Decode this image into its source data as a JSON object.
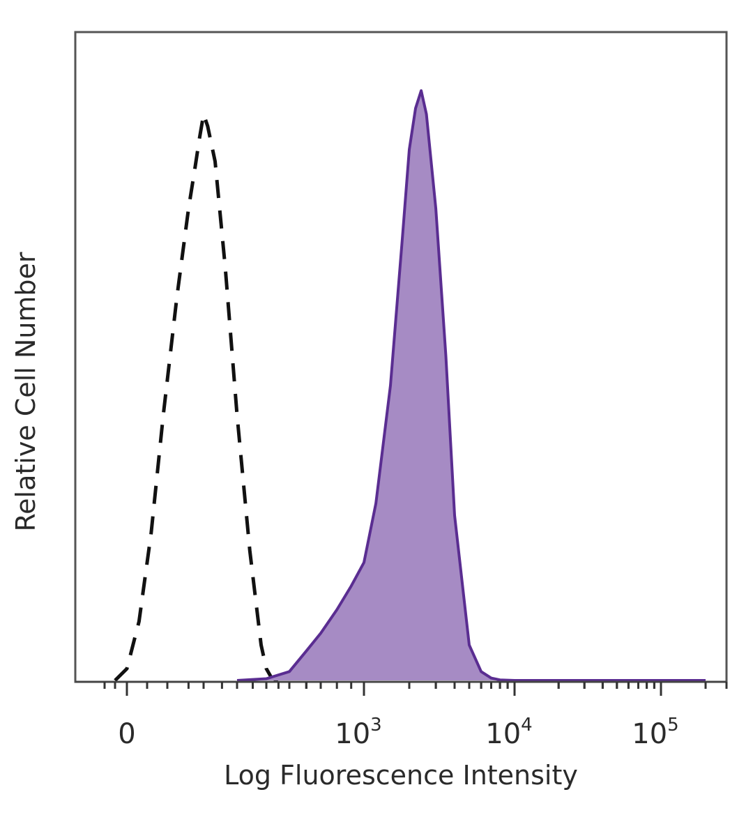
{
  "chart_data": {
    "type": "area",
    "xlabel": "Log Fluorescence Intensity",
    "ylabel": "Relative Cell Number",
    "x_scale": "biexponential",
    "x_ticks": [
      {
        "value": 0,
        "label": "0",
        "exponent": ""
      },
      {
        "value": 1000,
        "label": "10",
        "exponent": "3"
      },
      {
        "value": 10000,
        "label": "10",
        "exponent": "4"
      },
      {
        "value": 100000,
        "label": "10",
        "exponent": "5"
      }
    ],
    "ylim": [
      0,
      100
    ],
    "grid": false,
    "legend": "none",
    "series": [
      {
        "style": "dashed",
        "color": "#111111",
        "x": [
          -50,
          0,
          30,
          60,
          90,
          120,
          150,
          170,
          185,
          200,
          210,
          230,
          260,
          300,
          340,
          380,
          400,
          420,
          440,
          460
        ],
        "y": [
          0,
          2,
          10,
          25,
          45,
          65,
          80,
          87,
          92,
          96,
          94,
          88,
          70,
          45,
          22,
          6,
          2,
          0.5,
          0.1,
          0
        ]
      },
      {
        "style": "filled",
        "color": "#5a2d91",
        "fill": "#a68bc4",
        "x": [
          300,
          400,
          500,
          600,
          700,
          800,
          900,
          1000,
          1200,
          1500,
          1800,
          2000,
          2200,
          2400,
          2600,
          3000,
          3500,
          4000,
          5000,
          6000,
          7000,
          8000,
          10000,
          20000,
          50000,
          100000,
          200000
        ],
        "y": [
          0,
          0.3,
          1.5,
          5,
          8,
          12,
          16,
          20,
          30,
          50,
          75,
          90,
          97,
          100,
          96,
          80,
          55,
          28,
          6,
          1.5,
          0.4,
          0.1,
          0,
          0,
          0,
          0,
          0
        ]
      }
    ]
  }
}
